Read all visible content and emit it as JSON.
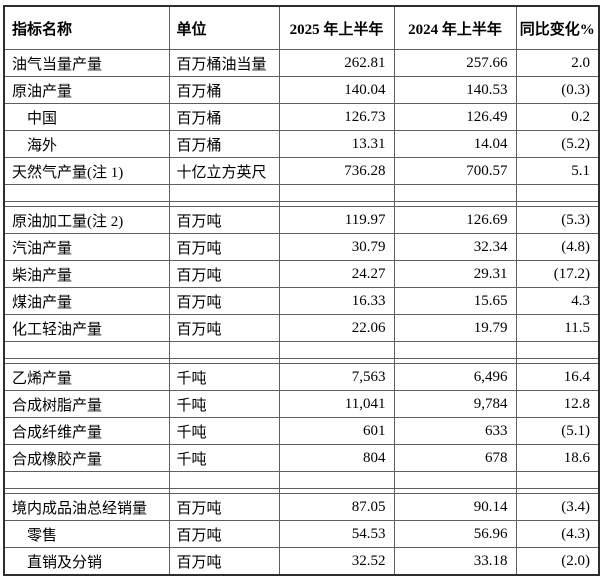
{
  "page": {
    "background_color": "#ffffff",
    "text_color": "#000000",
    "grid_color": "#5f5f5f",
    "outer_border_color": "#2e2e2e"
  },
  "table": {
    "headers": [
      "指标名称",
      "单位",
      "2025 年上半年",
      "2024 年上半年",
      "同比变化%"
    ],
    "sections": [
      {
        "rows": [
          {
            "name": "油气当量产量",
            "indent": false,
            "unit": "百万桶油当量",
            "v2025": "262.81",
            "v2024": "257.66",
            "change": "2.0"
          },
          {
            "name": "原油产量",
            "indent": false,
            "unit": "百万桶",
            "v2025": "140.04",
            "v2024": "140.53",
            "change": "(0.3)"
          },
          {
            "name": "中国",
            "indent": true,
            "unit": "百万桶",
            "v2025": "126.73",
            "v2024": "126.49",
            "change": "0.2"
          },
          {
            "name": "海外",
            "indent": true,
            "unit": "百万桶",
            "v2025": "13.31",
            "v2024": "14.04",
            "change": "(5.2)"
          },
          {
            "name": "天然气产量(注 1)",
            "indent": false,
            "unit": "十亿立方英尺",
            "v2025": "736.28",
            "v2024": "700.57",
            "change": "5.1"
          }
        ]
      },
      {
        "rows": [
          {
            "name": "原油加工量(注 2)",
            "indent": false,
            "unit": "百万吨",
            "v2025": "119.97",
            "v2024": "126.69",
            "change": "(5.3)"
          },
          {
            "name": "汽油产量",
            "indent": false,
            "unit": "百万吨",
            "v2025": "30.79",
            "v2024": "32.34",
            "change": "(4.8)"
          },
          {
            "name": "柴油产量",
            "indent": false,
            "unit": "百万吨",
            "v2025": "24.27",
            "v2024": "29.31",
            "change": "(17.2)"
          },
          {
            "name": "煤油产量",
            "indent": false,
            "unit": "百万吨",
            "v2025": "16.33",
            "v2024": "15.65",
            "change": "4.3"
          },
          {
            "name": "化工轻油产量",
            "indent": false,
            "unit": "百万吨",
            "v2025": "22.06",
            "v2024": "19.79",
            "change": "11.5"
          }
        ]
      },
      {
        "rows": [
          {
            "name": "乙烯产量",
            "indent": false,
            "unit": "千吨",
            "v2025": "7,563",
            "v2024": "6,496",
            "change": "16.4"
          },
          {
            "name": "合成树脂产量",
            "indent": false,
            "unit": "千吨",
            "v2025": "11,041",
            "v2024": "9,784",
            "change": "12.8"
          },
          {
            "name": "合成纤维产量",
            "indent": false,
            "unit": "千吨",
            "v2025": "601",
            "v2024": "633",
            "change": "(5.1)"
          },
          {
            "name": "合成橡胶产量",
            "indent": false,
            "unit": "千吨",
            "v2025": "804",
            "v2024": "678",
            "change": "18.6"
          }
        ]
      },
      {
        "rows": [
          {
            "name": "境内成品油总经销量",
            "indent": false,
            "unit": "百万吨",
            "v2025": "87.05",
            "v2024": "90.14",
            "change": "(3.4)"
          },
          {
            "name": "零售",
            "indent": true,
            "unit": "百万吨",
            "v2025": "54.53",
            "v2024": "56.96",
            "change": "(4.3)"
          },
          {
            "name": "直销及分销",
            "indent": true,
            "unit": "百万吨",
            "v2025": "32.52",
            "v2024": "33.18",
            "change": "(2.0)"
          }
        ]
      }
    ]
  }
}
